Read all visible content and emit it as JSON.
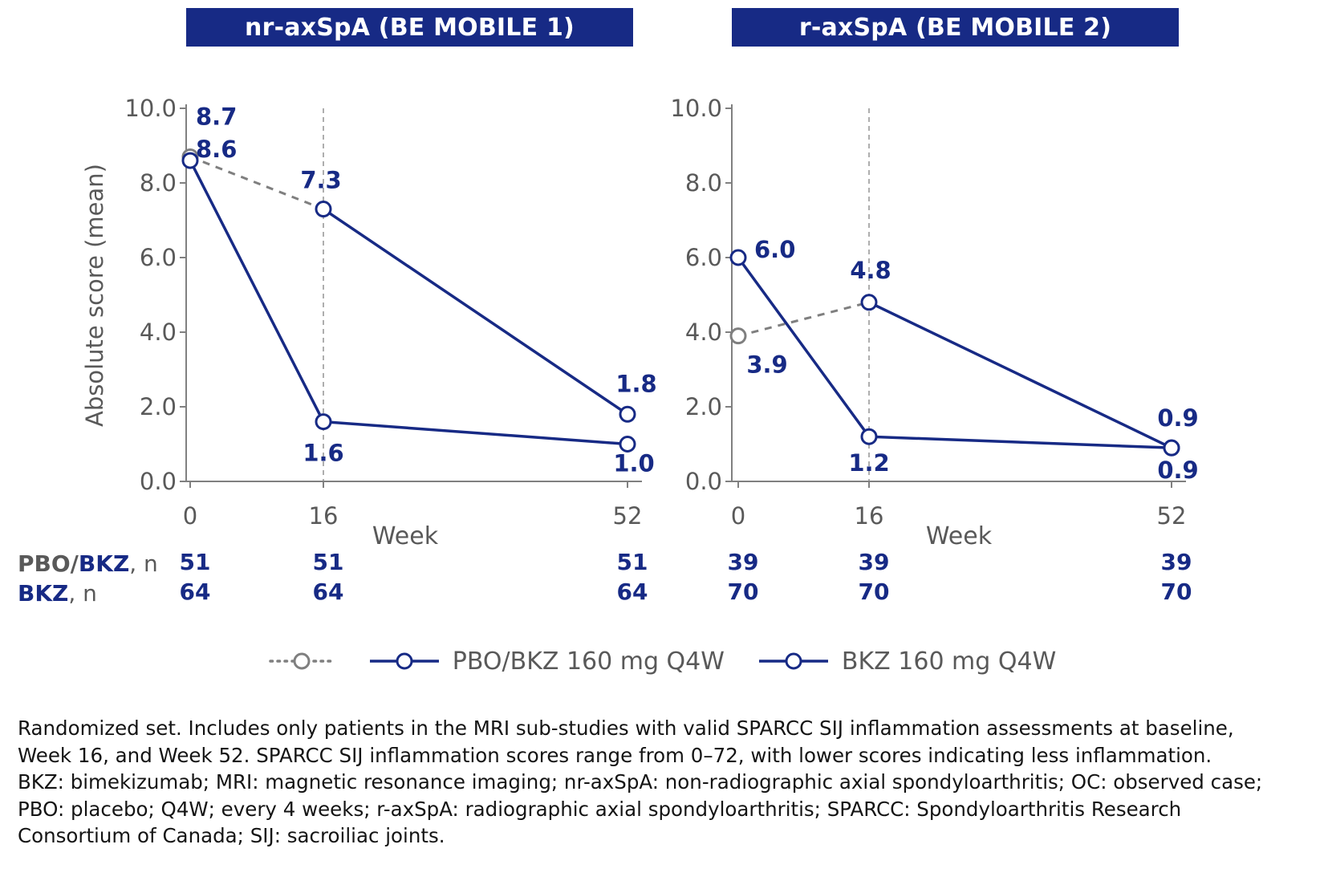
{
  "colors": {
    "navy": "#172a85",
    "banner_bg": "#172a85",
    "axis_gray": "#808080",
    "dashed_gray": "#7f7f7f",
    "text_gray": "#595959",
    "footnote_text": "#141414"
  },
  "legend": {
    "pbo_label": "PBO/BKZ 160 mg Q4W",
    "bkz_label": "BKZ 160 mg Q4W"
  },
  "rows": [
    {
      "prefix": "PBO/",
      "name": "BKZ",
      "suffix": ", n"
    },
    {
      "prefix": "",
      "name": "BKZ",
      "suffix": ", n"
    }
  ],
  "footnote_lines": [
    "Randomized set. Includes only patients in the MRI sub-studies with valid SPARCC SIJ inflammation assessments at baseline,",
    "Week 16, and Week 52. SPARCC SIJ inflammation scores range from 0–72, with lower scores indicating less inflammation.",
    "BKZ: bimekizumab; MRI: magnetic resonance imaging; nr-axSpA: non-radiographic axial spondyloarthritis; OC: observed case;",
    "PBO: placebo; Q4W; every 4 weeks; r-axSpA: radiographic axial spondyloarthritis; SPARCC: Spondyloarthritis Research",
    "Consortium of Canada; SIJ: sacroiliac joints."
  ],
  "chart_data": [
    {
      "type": "line",
      "title": "nr-axSpA (BE MOBILE 1)",
      "xlabel": "Week",
      "ylabel": "Absolute score (mean)",
      "x": [
        0,
        16,
        52
      ],
      "ylim": [
        0.0,
        10.0
      ],
      "yticks": [
        10.0,
        8.0,
        6.0,
        4.0,
        2.0,
        0.0
      ],
      "reference_line_x": 16,
      "series": [
        {
          "name": "PBO/BKZ 160 mg Q4W",
          "values": [
            8.7,
            7.3,
            1.8
          ],
          "style": "dashed_to_week16_then_solid",
          "label_offsets": [
            [
              7,
              -40,
              "start"
            ],
            [
              -3,
              -26,
              "middle"
            ],
            [
              11,
              -28,
              "middle"
            ]
          ]
        },
        {
          "name": "BKZ 160 mg Q4W",
          "values": [
            8.6,
            1.6,
            1.0
          ],
          "style": "solid",
          "label_offsets": [
            [
              7,
              -4,
              "start"
            ],
            [
              0,
              49,
              "middle"
            ],
            [
              8,
              34,
              "middle"
            ]
          ]
        }
      ],
      "n_rows": [
        {
          "series": "PBO/BKZ",
          "values": [
            "51",
            "51",
            "51"
          ]
        },
        {
          "series": "BKZ",
          "values": [
            "64",
            "64",
            "64"
          ]
        }
      ]
    },
    {
      "type": "line",
      "title": "r-axSpA (BE MOBILE 2)",
      "xlabel": "Week",
      "ylabel": "",
      "x": [
        0,
        16,
        52
      ],
      "ylim": [
        0.0,
        10.0
      ],
      "yticks": [
        10.0,
        8.0,
        6.0,
        4.0,
        2.0,
        0.0
      ],
      "reference_line_x": 16,
      "series": [
        {
          "name": "PBO/BKZ 160 mg Q4W",
          "values": [
            3.9,
            4.8,
            0.9
          ],
          "style": "dashed_to_week16_then_solid",
          "label_offsets": [
            [
              36,
              46,
              "middle"
            ],
            [
              2,
              -30,
              "middle"
            ],
            [
              8,
              -27,
              "middle"
            ]
          ]
        },
        {
          "name": "BKZ 160 mg Q4W",
          "values": [
            6.0,
            1.2,
            0.9
          ],
          "style": "solid",
          "label_offsets": [
            [
              20,
              0,
              "start"
            ],
            [
              0,
              43,
              "middle"
            ],
            [
              8,
              38,
              "middle"
            ]
          ]
        }
      ],
      "n_rows": [
        {
          "series": "PBO/BKZ",
          "values": [
            "39",
            "39",
            "39"
          ]
        },
        {
          "series": "BKZ",
          "values": [
            "70",
            "70",
            "70"
          ]
        }
      ]
    }
  ]
}
